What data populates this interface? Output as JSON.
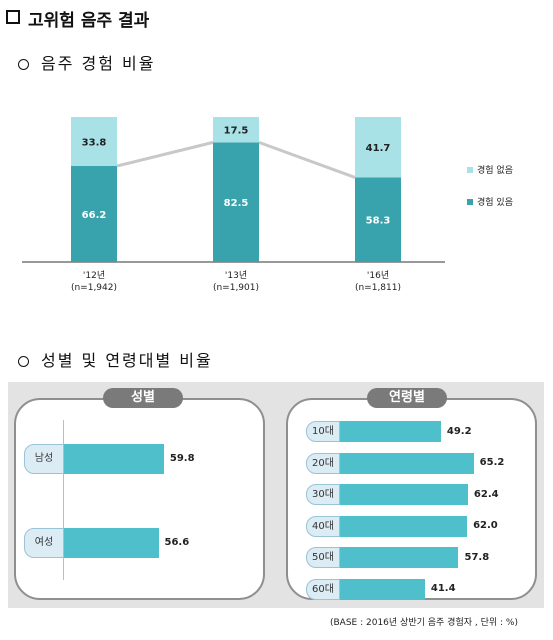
{
  "page": {
    "title": "고위험 음주 결과",
    "section1": "음주 경험 비율",
    "section2": "성별 및 연령대별 비율",
    "footnote": "(BASE : 2016년 상반기 음주 경험자 , 단위 : %)"
  },
  "colors": {
    "dark_teal": "#38a3ad",
    "light_teal": "#a8e1e6",
    "bright_teal": "#4fc0cb",
    "connector": "#c8c8c8",
    "pill_gray": "#7a7a7a"
  },
  "chart_data": [
    {
      "type": "bar",
      "stacked": true,
      "title": "음주 경험 비율",
      "categories": [
        "'12년\n(n=1,942)",
        "'13년\n(n=1,901)",
        "'16년\n(n=1,811)"
      ],
      "series": [
        {
          "name": "경험 있음",
          "values": [
            66.2,
            82.5,
            58.3
          ],
          "color": "#38a3ad"
        },
        {
          "name": "경험 없음",
          "values": [
            33.8,
            17.5,
            41.7
          ],
          "color": "#a8e1e6"
        }
      ],
      "ylim": [
        0,
        100
      ],
      "legend": "right"
    },
    {
      "type": "bar",
      "orientation": "horizontal",
      "title": "성별",
      "categories": [
        "남성",
        "여성"
      ],
      "values": [
        59.8,
        56.6
      ]
    },
    {
      "type": "bar",
      "orientation": "horizontal",
      "title": "연령별",
      "categories": [
        "10대",
        "20대",
        "30대",
        "40대",
        "50대",
        "60대"
      ],
      "values": [
        49.2,
        65.2,
        62.4,
        62.0,
        57.8,
        41.4
      ],
      "value_labels": [
        "49.2",
        "65.2",
        "62.4",
        "62.0",
        "57.8",
        "41.4"
      ]
    }
  ]
}
